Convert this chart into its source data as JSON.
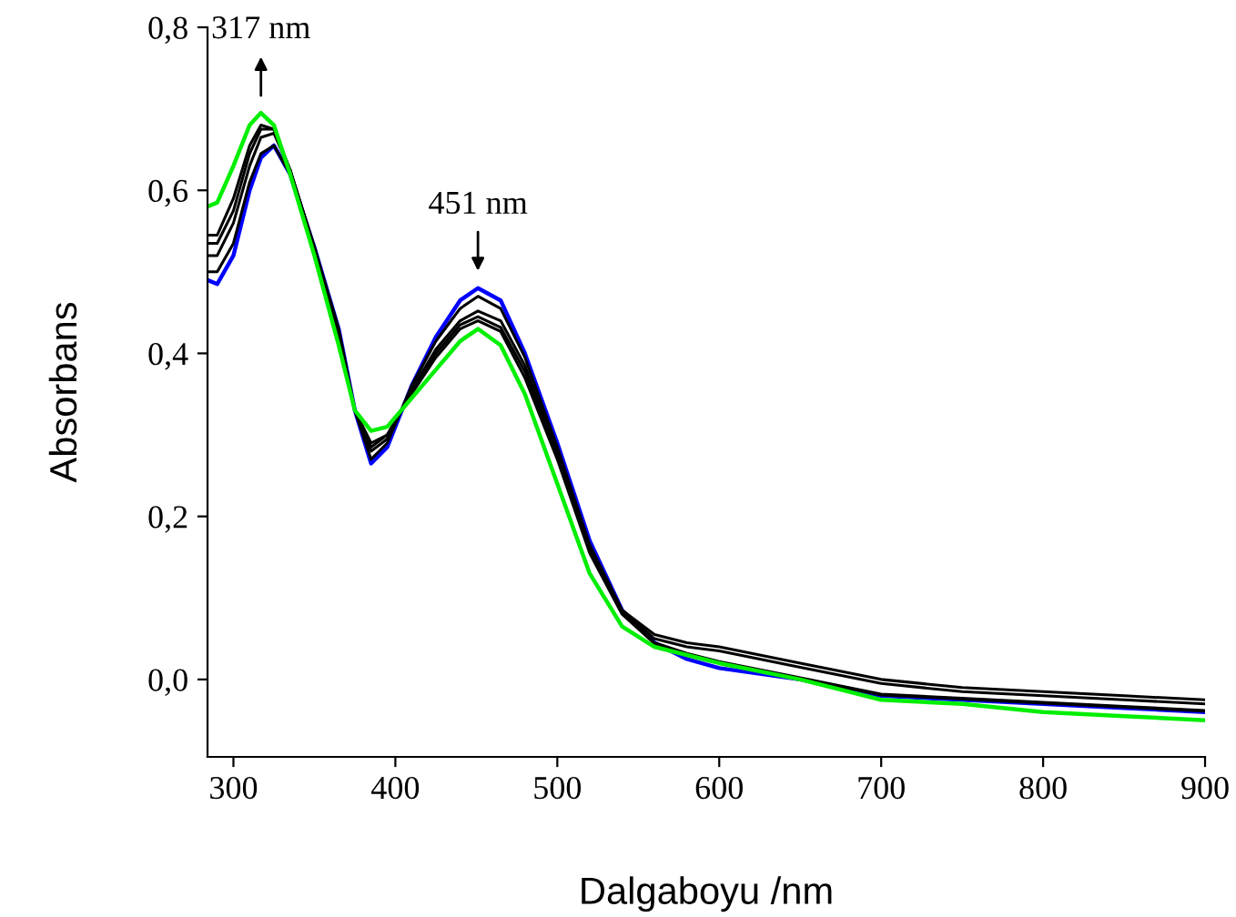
{
  "chart_data": {
    "type": "line",
    "xlabel": "Dalgaboyu /nm",
    "ylabel": "Absorbans",
    "xlim": [
      284,
      900
    ],
    "ylim": [
      -0.095,
      0.8
    ],
    "xticks": [
      300,
      400,
      500,
      600,
      700,
      800,
      900
    ],
    "yticks": [
      {
        "value": 0.0,
        "label": "0,0"
      },
      {
        "value": 0.2,
        "label": "0,2"
      },
      {
        "value": 0.4,
        "label": "0,4"
      },
      {
        "value": 0.6,
        "label": "0,6"
      },
      {
        "value": 0.8,
        "label": "0,8"
      }
    ],
    "grid": false,
    "legend": false,
    "marker": "none",
    "line_style": "solid",
    "x": [
      284,
      290,
      300,
      310,
      317,
      325,
      335,
      350,
      365,
      375,
      385,
      395,
      410,
      425,
      440,
      451,
      465,
      480,
      500,
      520,
      540,
      560,
      580,
      600,
      650,
      700,
      750,
      800,
      850,
      900
    ],
    "series": [
      {
        "color": "#0000ff",
        "values": [
          0.49,
          0.485,
          0.52,
          0.6,
          0.64,
          0.655,
          0.62,
          0.53,
          0.43,
          0.33,
          0.265,
          0.285,
          0.36,
          0.42,
          0.465,
          0.48,
          0.465,
          0.4,
          0.29,
          0.17,
          0.085,
          0.045,
          0.025,
          0.014,
          0.0,
          -0.02,
          -0.025,
          -0.03,
          -0.035,
          -0.04
        ]
      },
      {
        "color": "#000000",
        "values": [
          0.5,
          0.5,
          0.535,
          0.61,
          0.645,
          0.655,
          0.62,
          0.53,
          0.43,
          0.33,
          0.27,
          0.29,
          0.36,
          0.415,
          0.455,
          0.47,
          0.455,
          0.395,
          0.285,
          0.165,
          0.085,
          0.05,
          0.04,
          0.035,
          0.015,
          -0.005,
          -0.015,
          -0.02,
          -0.025,
          -0.03
        ]
      },
      {
        "color": "#000000",
        "values": [
          0.52,
          0.52,
          0.56,
          0.63,
          0.665,
          0.67,
          0.625,
          0.53,
          0.425,
          0.33,
          0.28,
          0.295,
          0.355,
          0.405,
          0.44,
          0.452,
          0.44,
          0.385,
          0.28,
          0.16,
          0.085,
          0.055,
          0.045,
          0.04,
          0.02,
          0.0,
          -0.01,
          -0.015,
          -0.02,
          -0.025
        ]
      },
      {
        "color": "#000000",
        "values": [
          0.535,
          0.535,
          0.575,
          0.645,
          0.675,
          0.675,
          0.625,
          0.53,
          0.42,
          0.33,
          0.285,
          0.3,
          0.352,
          0.4,
          0.435,
          0.445,
          0.432,
          0.378,
          0.275,
          0.158,
          0.083,
          0.045,
          0.032,
          0.022,
          0.002,
          -0.018,
          -0.023,
          -0.028,
          -0.033,
          -0.038
        ]
      },
      {
        "color": "#000000",
        "values": [
          0.545,
          0.545,
          0.59,
          0.655,
          0.68,
          0.675,
          0.625,
          0.525,
          0.415,
          0.33,
          0.29,
          0.3,
          0.35,
          0.395,
          0.43,
          0.44,
          0.427,
          0.37,
          0.27,
          0.155,
          0.08,
          0.044,
          0.031,
          0.021,
          0.001,
          -0.019,
          -0.024,
          -0.029,
          -0.034,
          -0.039
        ]
      },
      {
        "color": "#00ee00",
        "values": [
          0.58,
          0.585,
          0.63,
          0.68,
          0.695,
          0.68,
          0.62,
          0.52,
          0.41,
          0.33,
          0.305,
          0.31,
          0.345,
          0.38,
          0.415,
          0.43,
          0.41,
          0.35,
          0.24,
          0.13,
          0.065,
          0.04,
          0.03,
          0.02,
          0.0,
          -0.025,
          -0.03,
          -0.04,
          -0.045,
          -0.05
        ]
      }
    ],
    "annotations": [
      {
        "text": "317 nm",
        "x": 317,
        "y": 0.695
      },
      {
        "text": "451 nm",
        "x": 451,
        "y": 0.48
      }
    ]
  }
}
